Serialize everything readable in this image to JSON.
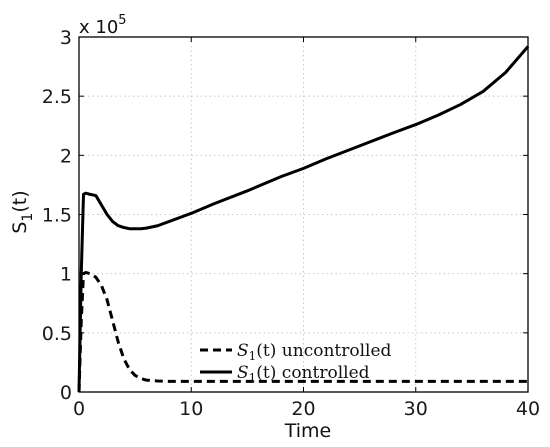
{
  "chart_data": {
    "type": "line",
    "xlabel": "Time",
    "ylabel": "S",
    "ylabel_sub": "1",
    "ylabel_suffix": "(t)",
    "y_multiplier_text": "x 10",
    "y_multiplier_exp": "5",
    "xlim": [
      0,
      40
    ],
    "ylim": [
      0,
      3
    ],
    "x_ticks": [
      0,
      10,
      20,
      30,
      40
    ],
    "y_ticks": [
      0,
      0.5,
      1,
      1.5,
      2,
      2.5,
      3
    ],
    "y_tick_labels": [
      "0",
      "0.5",
      "1",
      "1.5",
      "2",
      "2.5",
      "3"
    ],
    "x_tick_labels": [
      "0",
      "10",
      "20",
      "30",
      "40"
    ],
    "grid": true,
    "legend_position": "bottom-center",
    "series": [
      {
        "name": "S1(t) uncontrolled",
        "style": "dashed",
        "color": "#000000",
        "x": [
          0,
          0.2,
          0.4,
          0.6,
          1.0,
          1.5,
          2.0,
          2.5,
          3.0,
          3.5,
          4.0,
          4.5,
          5.0,
          5.5,
          6.0,
          7.0,
          8.0,
          10.0,
          15.0,
          20.0,
          25.0,
          30.0,
          35.0,
          40.0
        ],
        "y": [
          0,
          0.6,
          1.0,
          1.01,
          1.0,
          0.97,
          0.9,
          0.78,
          0.6,
          0.42,
          0.28,
          0.19,
          0.14,
          0.115,
          0.1,
          0.093,
          0.09,
          0.09,
          0.09,
          0.09,
          0.09,
          0.09,
          0.09,
          0.09
        ]
      },
      {
        "name": "S1(t) controlled",
        "style": "solid",
        "color": "#000000",
        "x": [
          0,
          0.2,
          0.4,
          0.6,
          1.0,
          1.5,
          2.0,
          2.5,
          3.0,
          3.5,
          4.0,
          4.5,
          5.0,
          5.5,
          6.0,
          7.0,
          8.0,
          10.0,
          12.0,
          15.0,
          18.0,
          20.0,
          22.0,
          25.0,
          28.0,
          30.0,
          32.0,
          34.0,
          36.0,
          38.0,
          40.0
        ],
        "y": [
          0,
          1.0,
          1.67,
          1.68,
          1.67,
          1.66,
          1.58,
          1.5,
          1.44,
          1.405,
          1.39,
          1.38,
          1.38,
          1.38,
          1.385,
          1.405,
          1.44,
          1.51,
          1.59,
          1.7,
          1.82,
          1.89,
          1.97,
          2.08,
          2.19,
          2.26,
          2.34,
          2.43,
          2.54,
          2.7,
          2.92
        ]
      }
    ],
    "legend": [
      {
        "sym": "S",
        "sub": "1",
        "rest": "(t) uncontrolled",
        "style": "dashed"
      },
      {
        "sym": "S",
        "sub": "1",
        "rest": "(t) controlled",
        "style": "solid"
      }
    ]
  }
}
